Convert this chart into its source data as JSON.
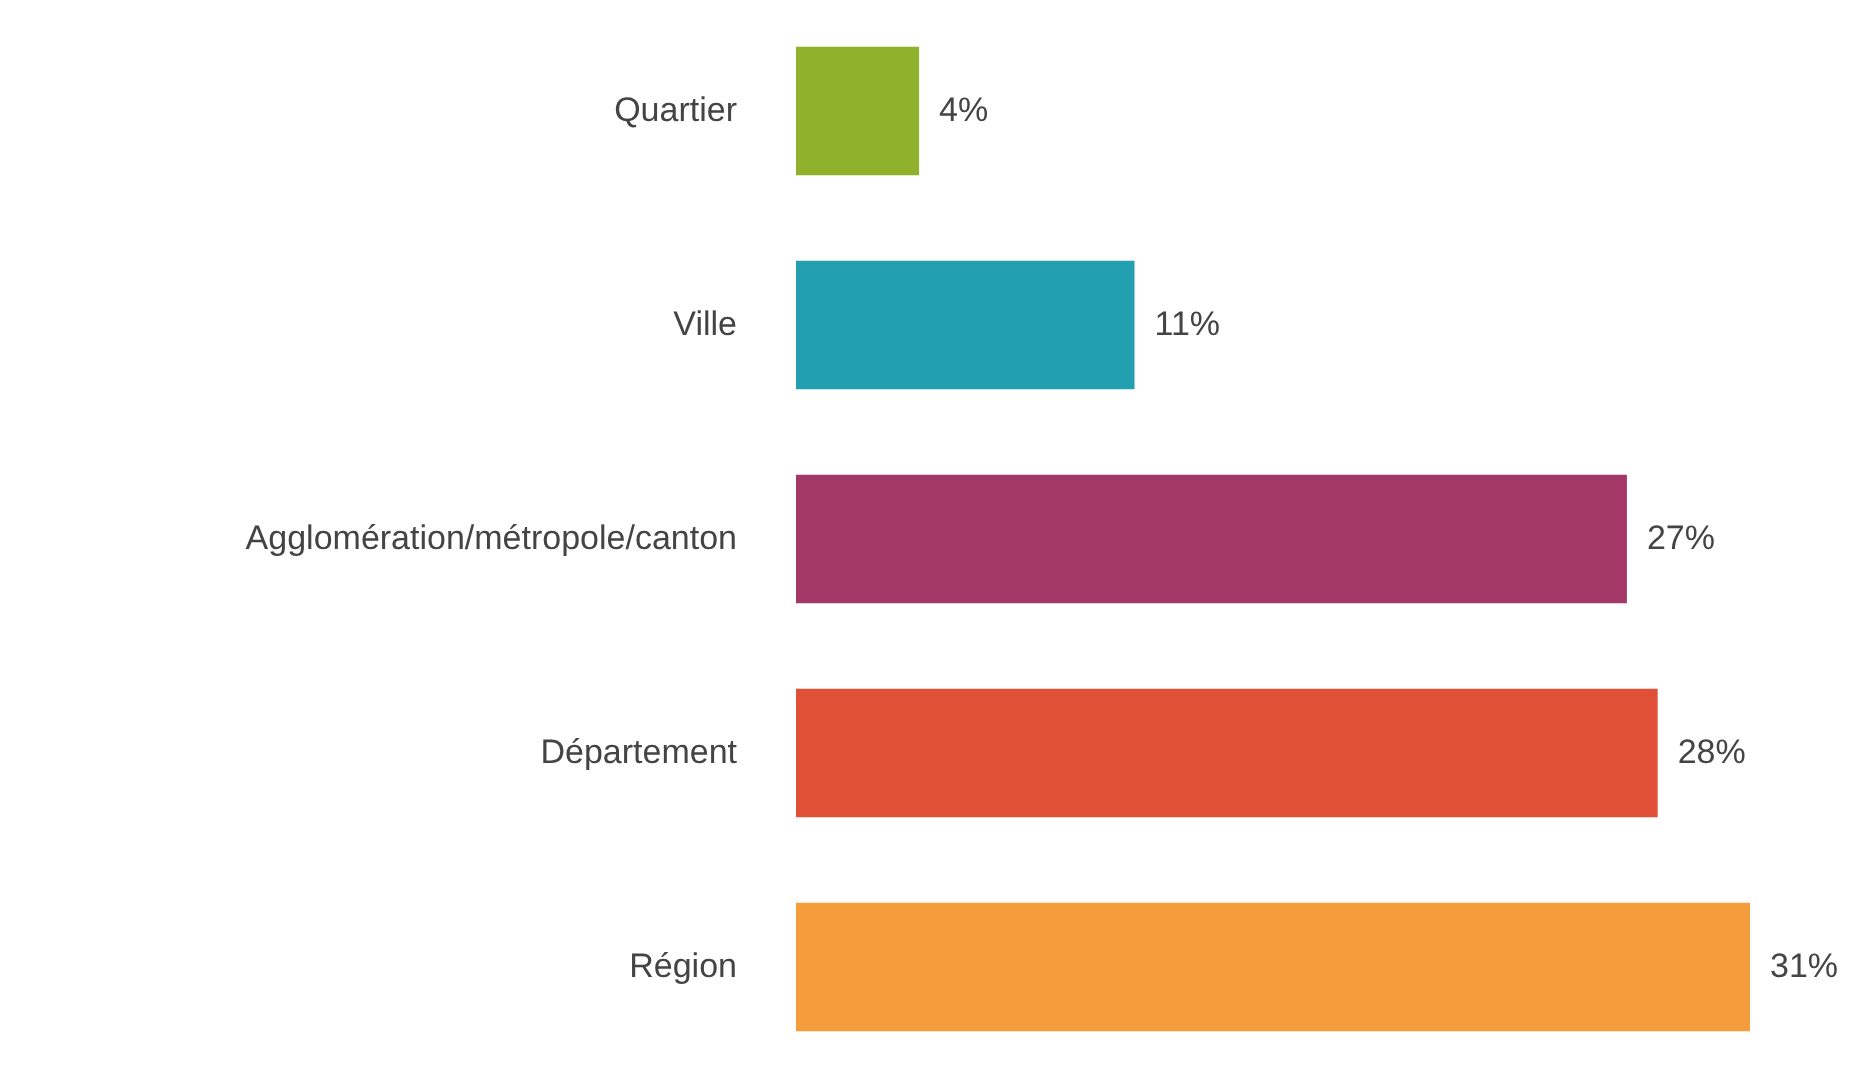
{
  "chart_data": {
    "type": "bar",
    "orientation": "horizontal",
    "categories": [
      "Quartier",
      "Ville",
      "Agglomération/métropole/canton",
      "Département",
      "Région"
    ],
    "values": [
      4,
      11,
      27,
      28,
      31
    ],
    "colors": [
      "#8fb12b",
      "#229fb0",
      "#a33866",
      "#df5037",
      "#f59c3c"
    ],
    "value_labels": [
      "4%",
      "11%",
      "27%",
      "28%",
      "31%"
    ]
  }
}
